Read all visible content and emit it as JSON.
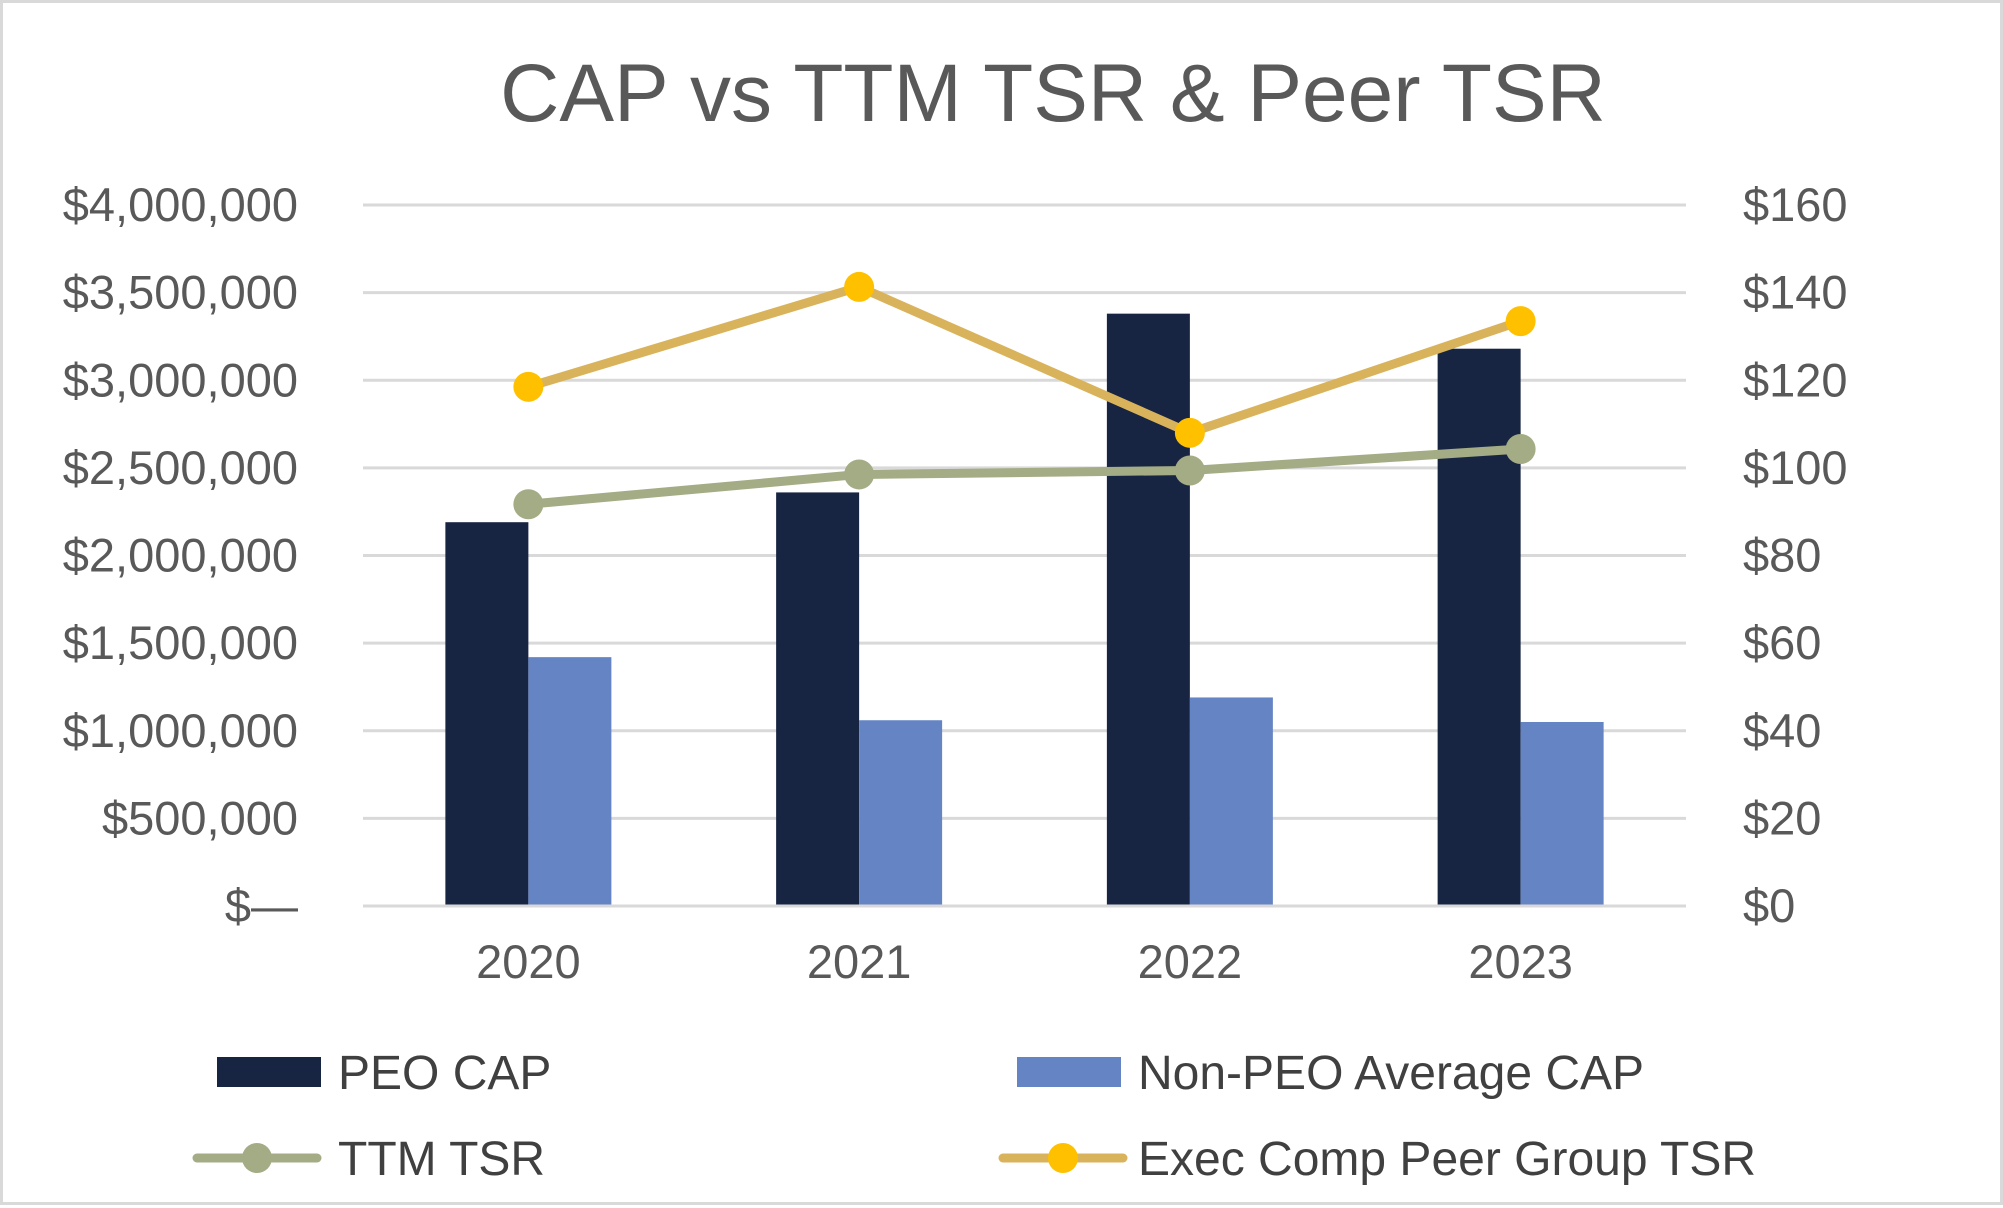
{
  "chart_data": {
    "type": "bar",
    "title": "CAP vs TTM TSR & Peer TSR",
    "categories": [
      "2020",
      "2021",
      "2022",
      "2023"
    ],
    "y_left": {
      "range": [
        0,
        4000000
      ],
      "ticks": [
        0,
        500000,
        1000000,
        1500000,
        2000000,
        2500000,
        3000000,
        3500000,
        4000000
      ],
      "tick_labels": [
        "$—",
        "$500,000",
        "$1,000,000",
        "$1,500,000",
        "$2,000,000",
        "$2,500,000",
        "$3,000,000",
        "$3,500,000",
        "$4,000,000"
      ]
    },
    "y_right": {
      "range": [
        0,
        160
      ],
      "ticks": [
        0,
        20,
        40,
        60,
        80,
        100,
        120,
        140,
        160
      ],
      "tick_labels": [
        "$0",
        "$20",
        "$40",
        "$60",
        "$80",
        "$100",
        "$120",
        "$140",
        "$160"
      ]
    },
    "series": [
      {
        "name": "PEO CAP",
        "kind": "bar",
        "axis": "left",
        "color": "#172542",
        "values": [
          2190000,
          2360000,
          3380000,
          3180000
        ]
      },
      {
        "name": "Non-PEO Average CAP",
        "kind": "bar",
        "axis": "left",
        "color": "#6584c4",
        "values": [
          1420000,
          1060000,
          1190000,
          1050000
        ]
      },
      {
        "name": "TTM TSR",
        "kind": "line",
        "axis": "right",
        "color": "#a3ac84",
        "values": [
          91.7,
          98.5,
          99.4,
          104.3
        ]
      },
      {
        "name": "Exec Comp Peer Group TSR",
        "kind": "line",
        "axis": "right",
        "color": "#d9b35c",
        "marker_color": "#ffc000",
        "values": [
          118.5,
          141.3,
          108.0,
          133.5
        ]
      }
    ],
    "grid": true,
    "legend_position": "bottom"
  }
}
